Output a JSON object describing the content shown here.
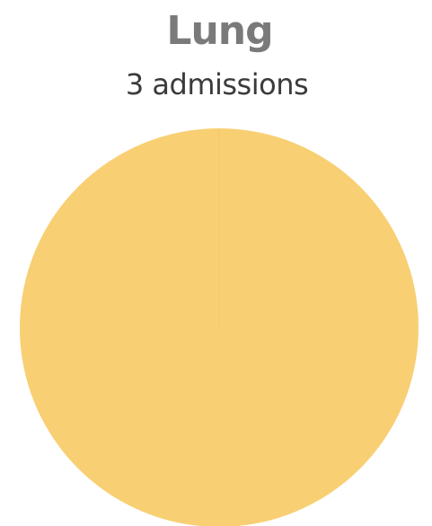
{
  "chart_data": {
    "type": "pie",
    "title": "Lung",
    "subtitle": "3 admissions",
    "categories": [
      "Lung"
    ],
    "values": [
      3
    ],
    "colors": [
      "#f8cf72"
    ]
  }
}
